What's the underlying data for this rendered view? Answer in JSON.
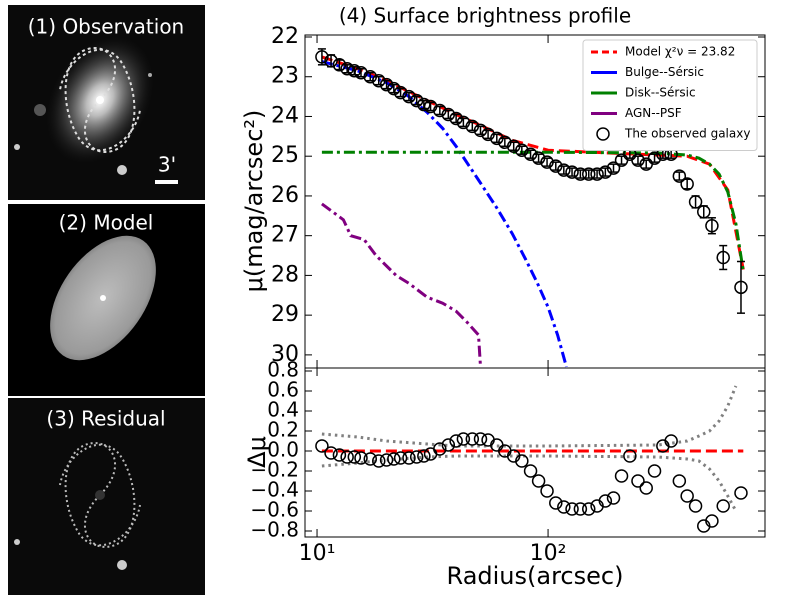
{
  "panels": [
    "(1) Observation",
    "(2) Model",
    "(3) Residual"
  ],
  "scale_bar": "3'",
  "chart_data": [
    {
      "type": "line",
      "title": "(4) Surface brightness profile",
      "ylabel": "μ(mag/arcsec²)",
      "xscale": "log",
      "xlim": [
        8.87,
        869
      ],
      "xticks": [
        10,
        100
      ],
      "ylim": [
        21.95,
        30.33
      ],
      "y_inverted": true,
      "yticks": [
        22,
        23,
        24,
        25,
        26,
        27,
        28,
        29,
        30
      ],
      "legend": "upper right",
      "series": [
        {
          "name": "Model χ²ν = 23.82",
          "color": "#ff0000",
          "style": "dashed",
          "x": [
            10.5,
            15,
            20,
            30,
            40,
            50,
            70,
            100,
            200,
            400,
            500,
            600,
            700
          ],
          "values": [
            22.5,
            22.8,
            23.1,
            23.6,
            23.95,
            24.2,
            24.6,
            24.85,
            24.93,
            25.0,
            25.2,
            25.85,
            27.85
          ]
        },
        {
          "name": "Bulge--Sérsic",
          "color": "#0000ff",
          "style": "dashdot",
          "x": [
            10.5,
            15,
            20,
            25,
            30,
            35,
            40,
            50,
            60,
            70,
            80,
            90,
            100,
            110,
            120
          ],
          "values": [
            22.62,
            22.85,
            23.15,
            23.5,
            23.9,
            24.3,
            24.75,
            25.6,
            26.3,
            26.95,
            27.6,
            28.2,
            28.8,
            29.5,
            30.3
          ]
        },
        {
          "name": "Disk--Sérsic",
          "color": "#008000",
          "style": "dashdot",
          "x": [
            10.5,
            100,
            300,
            400,
            450,
            500,
            550,
            600,
            650,
            700
          ],
          "values": [
            24.9,
            24.9,
            24.92,
            24.97,
            25.05,
            25.2,
            25.45,
            25.9,
            26.7,
            27.9
          ]
        },
        {
          "name": "AGN--PSF",
          "color": "#800080",
          "style": "dashdot",
          "x": [
            10.5,
            13,
            14,
            16,
            18,
            22,
            25,
            30,
            35,
            40,
            45,
            50,
            51
          ],
          "values": [
            26.2,
            26.6,
            27.0,
            27.1,
            27.5,
            28.0,
            28.2,
            28.55,
            28.7,
            28.9,
            29.2,
            29.5,
            30.3
          ]
        },
        {
          "name": "The observed galaxy",
          "color": "#000000",
          "style": "marker",
          "x": [
            10.5,
            11.5,
            12.5,
            13.5,
            14.5,
            15.5,
            17,
            18.5,
            20,
            21.5,
            23,
            25,
            27,
            29,
            31,
            34,
            37,
            40,
            43,
            47,
            51,
            55,
            60,
            65,
            71,
            77,
            84,
            91,
            99,
            108,
            117,
            127,
            138,
            150,
            163,
            177,
            192,
            208,
            226,
            245,
            266,
            289,
            314,
            341,
            370,
            400,
            435,
            472,
            512,
            573,
            684
          ],
          "values": [
            22.5,
            22.6,
            22.7,
            22.8,
            22.85,
            22.9,
            23.0,
            23.1,
            23.2,
            23.3,
            23.4,
            23.5,
            23.6,
            23.7,
            23.75,
            23.85,
            23.95,
            24.05,
            24.15,
            24.25,
            24.35,
            24.45,
            24.55,
            24.65,
            24.75,
            24.85,
            24.95,
            25.05,
            25.15,
            25.25,
            25.35,
            25.4,
            25.45,
            25.45,
            25.45,
            25.4,
            25.3,
            25.1,
            24.95,
            25.1,
            25.2,
            25.05,
            24.95,
            24.95,
            25.5,
            25.7,
            26.15,
            26.4,
            26.75,
            27.55,
            28.3
          ],
          "errors": [
            0.2,
            0.15,
            0.12,
            0.1,
            0.1,
            0.1,
            0.1,
            0.1,
            0.1,
            0.1,
            0.1,
            0.1,
            0.1,
            0.1,
            0.1,
            0.1,
            0.1,
            0.1,
            0.1,
            0.1,
            0.1,
            0.1,
            0.1,
            0.1,
            0.1,
            0.1,
            0.1,
            0.1,
            0.1,
            0.1,
            0.1,
            0.1,
            0.1,
            0.1,
            0.1,
            0.1,
            0.1,
            0.1,
            0.1,
            0.1,
            0.1,
            0.1,
            0.1,
            0.1,
            0.1,
            0.12,
            0.15,
            0.15,
            0.2,
            0.3,
            0.65
          ]
        }
      ]
    },
    {
      "type": "line",
      "xlabel": "Radius(arcsec)",
      "ylabel": "Δμ",
      "xscale": "log",
      "xlim": [
        8.87,
        869
      ],
      "xticks": [
        {
          "value": 10,
          "label": "10¹"
        },
        {
          "value": 100,
          "label": "10²"
        }
      ],
      "ylim": [
        -0.86,
        0.83
      ],
      "yticks": [
        0.8,
        0.6,
        0.4,
        0.2,
        {
          "value": 0,
          "label": "0.0"
        },
        {
          "value": -0.2,
          "label": "−0.2"
        },
        {
          "value": -0.4,
          "label": "−0.4"
        },
        {
          "value": -0.6,
          "label": "−0.6"
        },
        {
          "value": -0.8,
          "label": "−0.8"
        }
      ],
      "series": [
        {
          "color": "#808080",
          "style": "dotted",
          "x": [
            10.5,
            15,
            20,
            30,
            40,
            100,
            300,
            400,
            450,
            500,
            550,
            600,
            650
          ],
          "values": [
            0.17,
            0.14,
            0.1,
            0.07,
            0.05,
            0.05,
            0.06,
            0.1,
            0.15,
            0.2,
            0.3,
            0.45,
            0.65
          ]
        },
        {
          "color": "#808080",
          "style": "dotted",
          "x": [
            10.5,
            15,
            20,
            30,
            40,
            100,
            300,
            400,
            450,
            500,
            550,
            600,
            650
          ],
          "values": [
            -0.15,
            -0.12,
            -0.09,
            -0.06,
            -0.05,
            -0.05,
            -0.06,
            -0.08,
            -0.1,
            -0.18,
            -0.3,
            -0.45,
            -0.6
          ]
        },
        {
          "color": "#ff0000",
          "style": "dashed",
          "x": [
            10.5,
            700
          ],
          "values": [
            0,
            0
          ]
        },
        {
          "color": "#000000",
          "style": "marker",
          "x": [
            10.5,
            11.5,
            12.5,
            13.5,
            14.5,
            15.5,
            17,
            18.5,
            20,
            21.5,
            23,
            25,
            27,
            29,
            31,
            34,
            37,
            40,
            43,
            47,
            51,
            55,
            60,
            65,
            71,
            77,
            84,
            91,
            99,
            108,
            117,
            127,
            138,
            150,
            163,
            177,
            192,
            208,
            226,
            245,
            266,
            289,
            314,
            341,
            370,
            400,
            435,
            472,
            512,
            573,
            684
          ],
          "values": [
            0.05,
            -0.02,
            -0.04,
            -0.06,
            -0.06,
            -0.07,
            -0.08,
            -0.1,
            -0.09,
            -0.08,
            -0.07,
            -0.07,
            -0.06,
            -0.05,
            -0.03,
            0.02,
            0.06,
            0.1,
            0.12,
            0.12,
            0.12,
            0.11,
            0.06,
            0.0,
            -0.05,
            -0.1,
            -0.2,
            -0.3,
            -0.4,
            -0.52,
            -0.56,
            -0.58,
            -0.58,
            -0.58,
            -0.55,
            -0.5,
            -0.47,
            -0.25,
            -0.05,
            -0.3,
            -0.37,
            -0.2,
            0.05,
            0.1,
            -0.3,
            -0.45,
            -0.55,
            -0.75,
            -0.7,
            -0.55,
            -0.42
          ]
        }
      ]
    }
  ]
}
